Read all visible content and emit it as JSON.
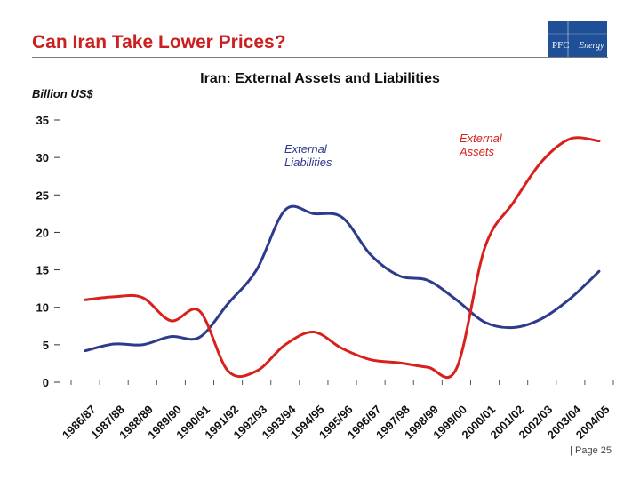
{
  "slide": {
    "title": "Can Iran Take Lower Prices?",
    "logo_text": "PFC Energy",
    "footer": "| Page 25"
  },
  "colors": {
    "title": "#cc1f1f",
    "assets": "#d8201c",
    "liabilities": "#2e3a8c",
    "logo_bg": "#1f4f96"
  },
  "chart_data": {
    "type": "line",
    "title": "Iran:  External Assets and Liabilities",
    "ylabel": "Billion US$",
    "xlabel": "",
    "ylim": [
      0,
      35
    ],
    "yticks": [
      0,
      5,
      10,
      15,
      20,
      25,
      30,
      35
    ],
    "categories": [
      "1986/87",
      "1987/88",
      "1988/89",
      "1989/90",
      "1990/91",
      "1991/92",
      "1992/93",
      "1993/94",
      "1994/95",
      "1995/96",
      "1996/97",
      "1997/98",
      "1998/99",
      "1999/00",
      "2000/01",
      "2001/02",
      "2002/03",
      "2003/04",
      "2004/05"
    ],
    "grid": false,
    "series": [
      {
        "name": "External Liabilities",
        "color": "#2e3a8c",
        "values": [
          4.2,
          5.1,
          5.0,
          6.1,
          6.0,
          10.5,
          15.0,
          23.0,
          22.5,
          22.0,
          17.0,
          14.2,
          13.6,
          11.0,
          8.0,
          7.3,
          8.5,
          11.2,
          14.8
        ]
      },
      {
        "name": "External Assets",
        "color": "#d8201c",
        "values": [
          11.0,
          11.4,
          11.3,
          8.2,
          9.5,
          1.5,
          1.5,
          5.0,
          6.7,
          4.5,
          3.0,
          2.6,
          2.0,
          1.8,
          18.0,
          24.0,
          29.5,
          32.5,
          32.2
        ]
      }
    ],
    "annotations": [
      {
        "text": "External\nLiabilities",
        "series": "External Liabilities"
      },
      {
        "text": "External\nAssets",
        "series": "External Assets"
      }
    ]
  }
}
